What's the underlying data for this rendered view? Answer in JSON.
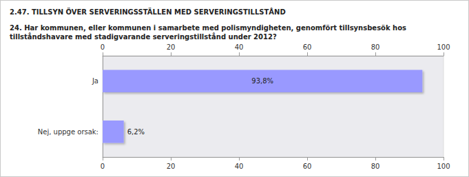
{
  "chart_data": {
    "type": "bar",
    "orientation": "horizontal",
    "title": "2.47. TILLSYN ÖVER SERVERINGSSTÄLLEN MED SERVERINGSTILLSTÅND",
    "subtitle": "24. Har kommunen, eller kommunen i samarbete med polismyndigheten, genomfört tillsynsbesök hos tillståndshavare med stadigvarande serveringstillstånd under 2012?",
    "categories": [
      "Ja",
      "Nej, uppge orsak:"
    ],
    "values": [
      93.8,
      6.2
    ],
    "value_labels": [
      "93,8%",
      "6,2%"
    ],
    "data_labels": true,
    "color": "#9999ff",
    "xlim": [
      0,
      100
    ],
    "xticks": [
      0,
      20,
      40,
      60,
      80,
      100
    ],
    "grid": false
  }
}
